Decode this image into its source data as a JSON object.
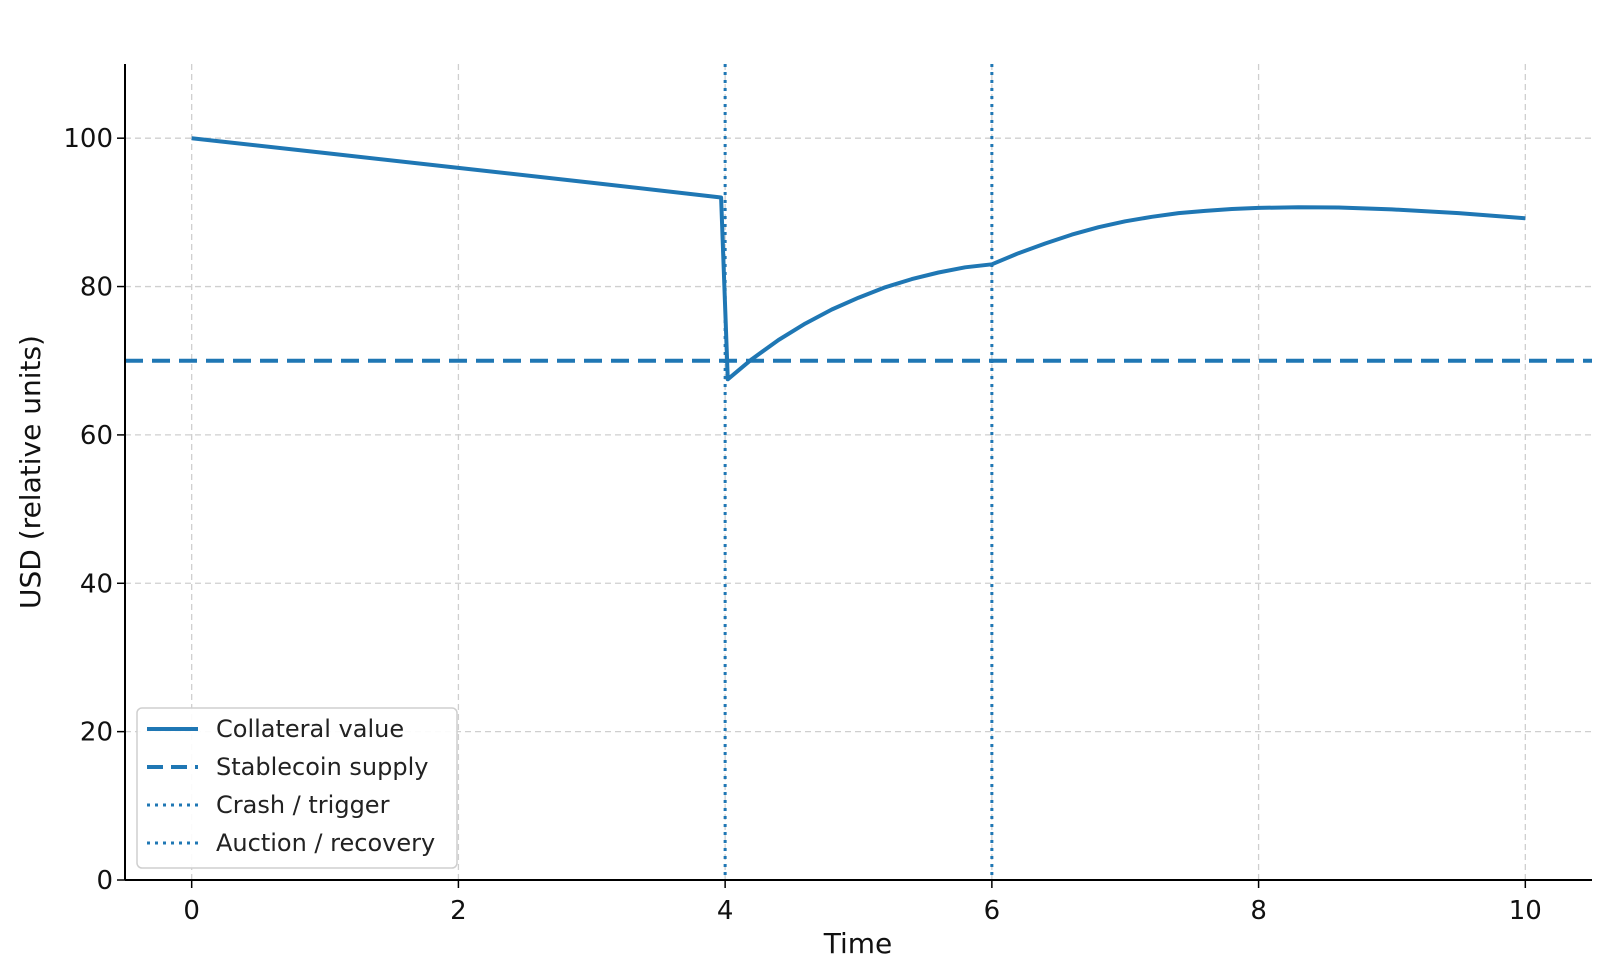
{
  "chart_data": {
    "type": "line",
    "title": "",
    "xlabel": "Time",
    "ylabel": "USD (relative units)",
    "xlim": [
      -0.5,
      10.5
    ],
    "ylim": [
      0,
      110
    ],
    "x_ticks": [
      0,
      2,
      4,
      6,
      8,
      10
    ],
    "y_ticks": [
      0,
      20,
      40,
      60,
      80,
      100
    ],
    "x_tick_labels": [
      "0",
      "2",
      "4",
      "6",
      "8",
      "10"
    ],
    "y_tick_labels": [
      "0",
      "20",
      "40",
      "60",
      "80",
      "100"
    ],
    "grid": true,
    "legend_position": "lower-left",
    "color": "#1f77b4",
    "series": [
      {
        "name": "Collateral value",
        "style": "solid",
        "x": [
          0,
          1,
          2,
          3,
          3.97,
          4.02,
          4.2,
          4.4,
          4.6,
          4.8,
          5.0,
          5.2,
          5.4,
          5.6,
          5.8,
          6.0,
          6.2,
          6.4,
          6.6,
          6.8,
          7.0,
          7.2,
          7.4,
          7.6,
          7.8,
          8.0,
          8.3,
          8.6,
          9.0,
          9.5,
          10.0
        ],
        "y": [
          100,
          98,
          96,
          94,
          92,
          67.5,
          70.2,
          72.8,
          75.0,
          76.9,
          78.5,
          79.9,
          81.0,
          81.9,
          82.6,
          83.0,
          84.5,
          85.8,
          87.0,
          88.0,
          88.8,
          89.4,
          89.9,
          90.2,
          90.45,
          90.6,
          90.7,
          90.65,
          90.4,
          89.9,
          89.2
        ]
      },
      {
        "name": "Stablecoin supply",
        "style": "dashed",
        "y_constant": 70
      },
      {
        "name": "Crash / trigger",
        "style": "dotted",
        "x_constant": 4
      },
      {
        "name": "Auction / recovery",
        "style": "dotted",
        "x_constant": 6
      }
    ]
  }
}
